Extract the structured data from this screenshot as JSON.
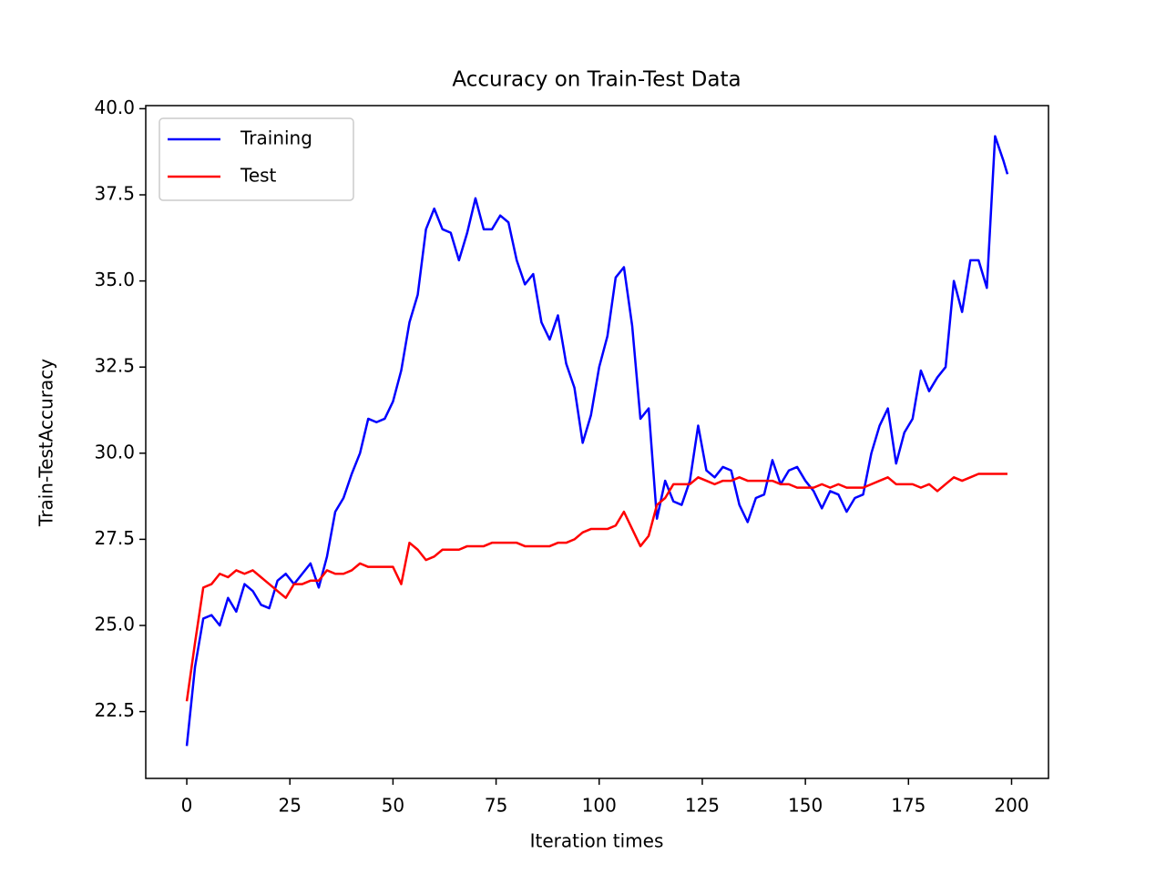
{
  "chart_data": {
    "type": "line",
    "title": "Accuracy on Train-Test Data",
    "x_label": "Iteration times",
    "y_label": "Train-TestAccuracy",
    "x": [
      0,
      2,
      4,
      6,
      8,
      10,
      12,
      14,
      16,
      18,
      20,
      22,
      24,
      26,
      28,
      30,
      32,
      34,
      36,
      38,
      40,
      42,
      44,
      46,
      48,
      50,
      52,
      54,
      56,
      58,
      60,
      62,
      64,
      66,
      68,
      70,
      72,
      74,
      76,
      78,
      80,
      82,
      84,
      86,
      88,
      90,
      92,
      94,
      96,
      98,
      100,
      102,
      104,
      106,
      108,
      110,
      112,
      114,
      116,
      118,
      120,
      122,
      124,
      126,
      128,
      130,
      132,
      134,
      136,
      138,
      140,
      142,
      144,
      146,
      148,
      150,
      152,
      154,
      156,
      158,
      160,
      162,
      164,
      166,
      168,
      170,
      172,
      174,
      176,
      178,
      180,
      182,
      184,
      186,
      188,
      190,
      192,
      194,
      196,
      198,
      199
    ],
    "series": [
      {
        "name": "Training",
        "color": "#0000ff",
        "values": [
          21.5,
          23.8,
          25.2,
          25.3,
          25.0,
          25.8,
          25.4,
          26.2,
          26.0,
          25.6,
          25.5,
          26.3,
          26.5,
          26.2,
          26.5,
          26.8,
          26.1,
          27.0,
          28.3,
          28.7,
          29.4,
          30.0,
          31.0,
          30.9,
          31.0,
          31.5,
          32.4,
          33.8,
          34.6,
          36.5,
          37.1,
          36.5,
          36.4,
          35.6,
          36.4,
          37.4,
          36.5,
          36.5,
          36.9,
          36.7,
          35.6,
          34.9,
          35.2,
          33.8,
          33.3,
          34.0,
          32.6,
          31.9,
          30.3,
          31.1,
          32.5,
          33.4,
          35.1,
          35.4,
          33.7,
          31.0,
          31.3,
          28.1,
          29.2,
          28.6,
          28.5,
          29.2,
          30.8,
          29.5,
          29.3,
          29.6,
          29.5,
          28.5,
          28.0,
          28.7,
          28.8,
          29.8,
          29.1,
          29.5,
          29.6,
          29.2,
          28.9,
          28.4,
          28.9,
          28.8,
          28.3,
          28.7,
          28.8,
          30.0,
          30.8,
          31.3,
          29.7,
          30.6,
          31.0,
          32.4,
          31.8,
          32.2,
          32.5,
          35.0,
          34.1,
          35.6,
          35.6,
          34.8,
          39.2,
          38.5,
          38.1
        ]
      },
      {
        "name": "Test",
        "color": "#ff0000",
        "values": [
          22.8,
          24.5,
          26.1,
          26.2,
          26.5,
          26.4,
          26.6,
          26.5,
          26.6,
          26.4,
          26.2,
          26.0,
          25.8,
          26.2,
          26.2,
          26.3,
          26.3,
          26.6,
          26.5,
          26.5,
          26.6,
          26.8,
          26.7,
          26.7,
          26.7,
          26.7,
          26.2,
          27.4,
          27.2,
          26.9,
          27.0,
          27.2,
          27.2,
          27.2,
          27.3,
          27.3,
          27.3,
          27.4,
          27.4,
          27.4,
          27.4,
          27.3,
          27.3,
          27.3,
          27.3,
          27.4,
          27.4,
          27.5,
          27.7,
          27.8,
          27.8,
          27.8,
          27.9,
          28.3,
          27.8,
          27.3,
          27.6,
          28.5,
          28.7,
          29.1,
          29.1,
          29.1,
          29.3,
          29.2,
          29.1,
          29.2,
          29.2,
          29.3,
          29.2,
          29.2,
          29.2,
          29.2,
          29.1,
          29.1,
          29.0,
          29.0,
          29.0,
          29.1,
          29.0,
          29.1,
          29.0,
          29.0,
          29.0,
          29.1,
          29.2,
          29.3,
          29.1,
          29.1,
          29.1,
          29.0,
          29.1,
          28.9,
          29.1,
          29.3,
          29.2,
          29.3,
          29.4,
          29.4,
          29.4,
          29.4,
          29.4
        ]
      }
    ],
    "xlim": [
      -9.95,
      208.95
    ],
    "ylim": [
      20.56,
      40.09
    ],
    "xticks": [
      0,
      25,
      50,
      75,
      100,
      125,
      150,
      175,
      200
    ],
    "yticks": [
      {
        "value": 22.5,
        "label": "22.5"
      },
      {
        "value": 25,
        "label": "25.0"
      },
      {
        "value": 27.5,
        "label": "27.5"
      },
      {
        "value": 30,
        "label": "30.0"
      },
      {
        "value": 32.5,
        "label": "32.5"
      },
      {
        "value": 35,
        "label": "35.0"
      },
      {
        "value": 37.5,
        "label": "37.5"
      },
      {
        "value": 40,
        "label": "40.0"
      }
    ],
    "legend": "upper left"
  }
}
